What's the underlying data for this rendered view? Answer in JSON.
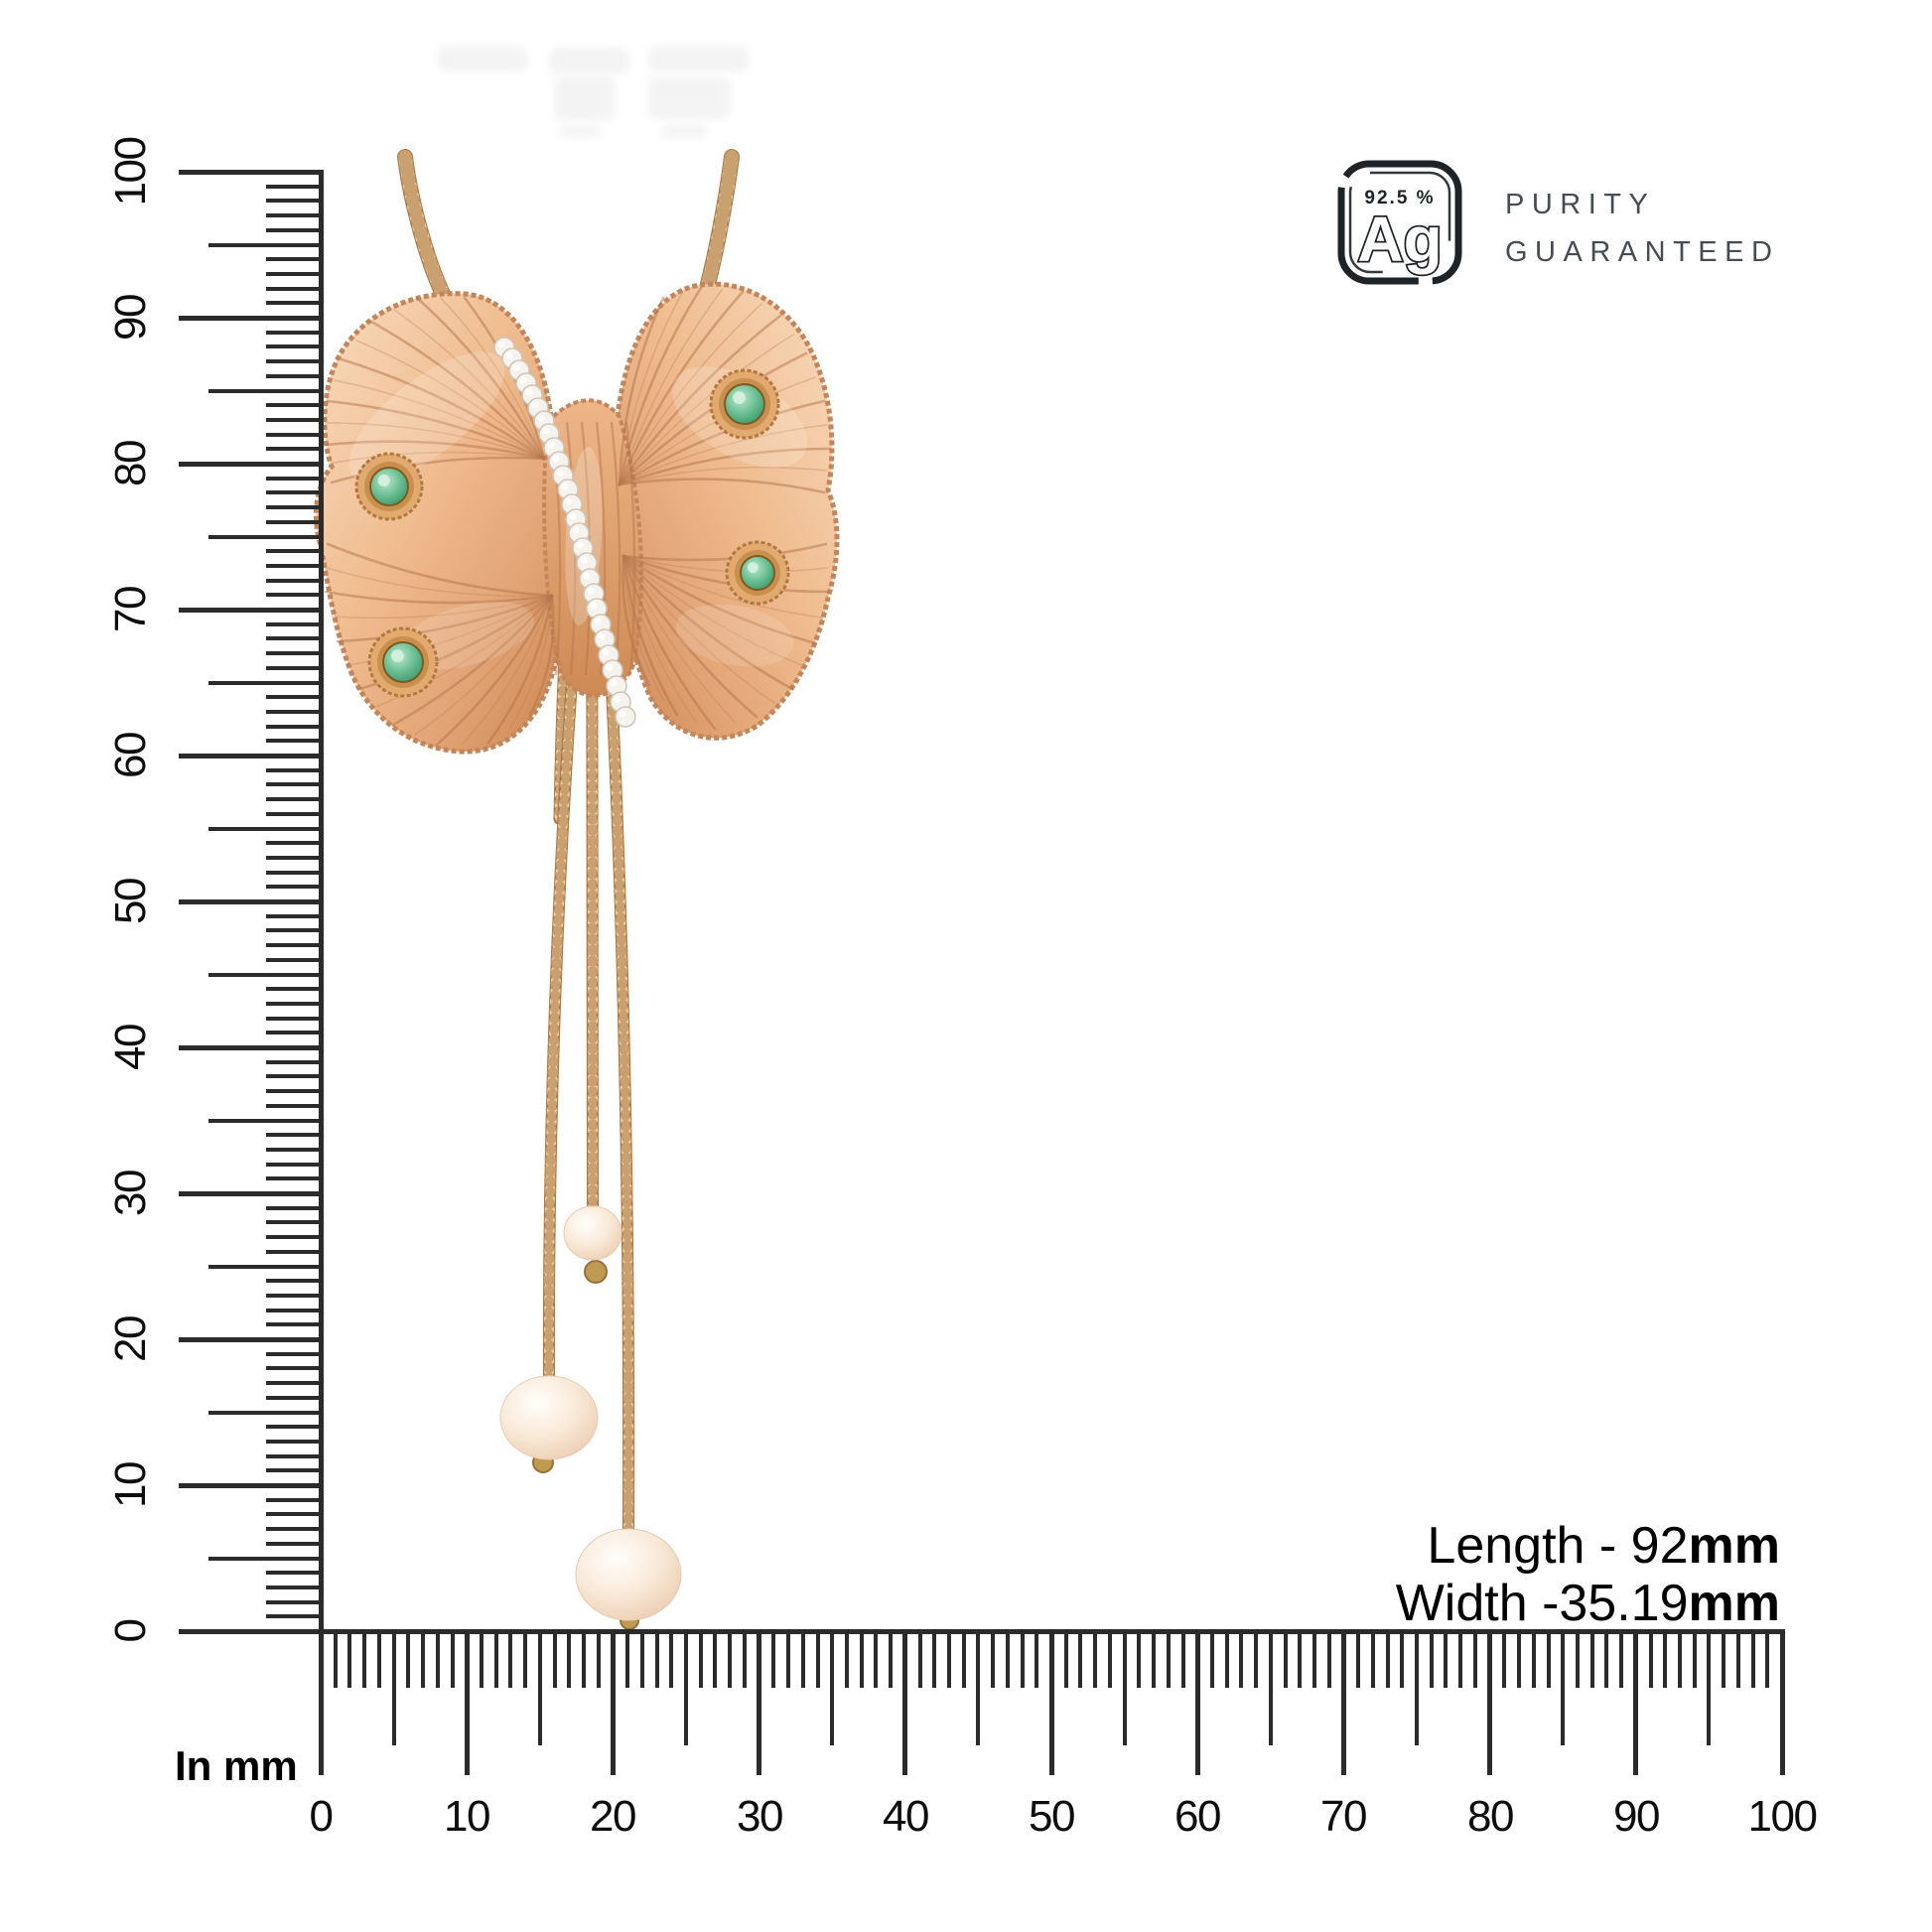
{
  "purity_badge": {
    "percent_text": "92.5 %",
    "element_symbol": "Ag",
    "caption_line1": "PURITY",
    "caption_line2": "GUARANTEED",
    "badge_color": "#1e2328",
    "caption_color": "#454c52"
  },
  "measurements": {
    "length_prefix": "Length - 92",
    "length_bold": "mm",
    "width_prefix": "Width -35.19",
    "width_bold": "mm",
    "text_color": "#000000"
  },
  "rulers": {
    "unit_label": "In mm",
    "axis_min": 0,
    "axis_max": 100,
    "major_step": 10,
    "vertical_labels": [
      "0",
      "10",
      "20",
      "30",
      "40",
      "50",
      "60",
      "70",
      "80",
      "90",
      "100"
    ],
    "horizontal_labels": [
      "0",
      "10",
      "20",
      "30",
      "40",
      "50",
      "60",
      "70",
      "80",
      "90",
      "100"
    ],
    "tick_color": "#2b2b2b",
    "label_color": "#0d0d0d"
  },
  "jewelry": {
    "pearl_count": 3,
    "emerald_count": 4,
    "crystal_band_stones": 26,
    "colors": {
      "rose_gold_light": "#f7d6b6",
      "rose_gold_mid": "#e8b285",
      "rose_gold_deep": "#c9854f",
      "chain_gold": "#d7a066",
      "pearl": "#f8e9da",
      "emerald": "#4ea377",
      "crystal": "#f6f3ee"
    }
  }
}
